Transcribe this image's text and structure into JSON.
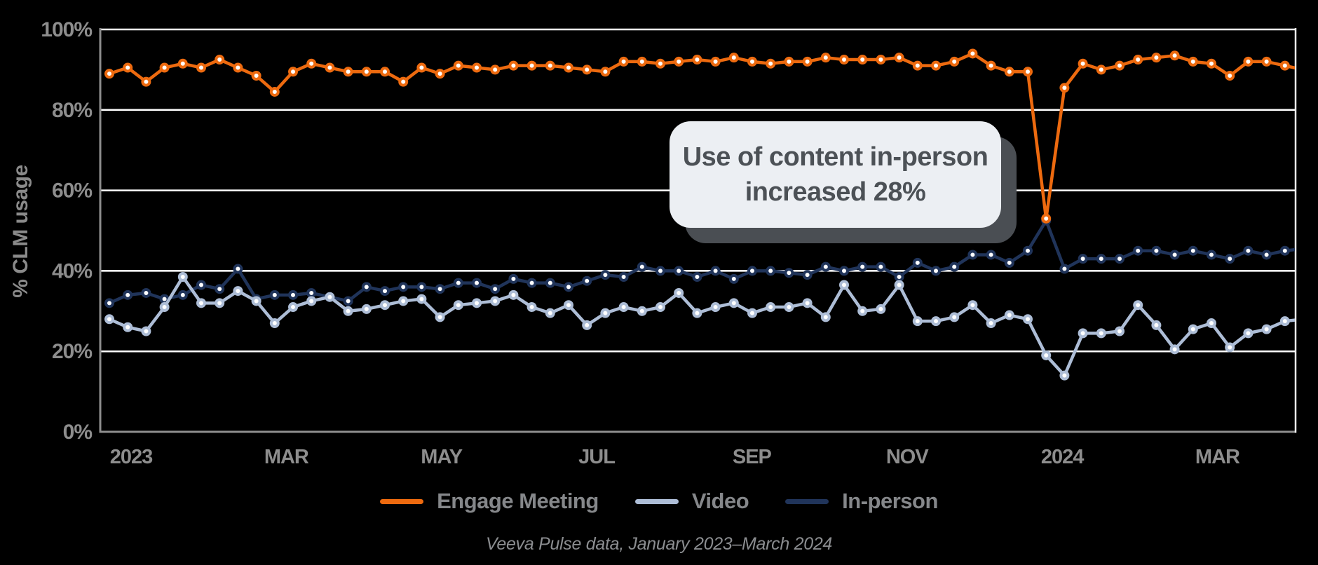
{
  "page": {
    "background": "#000000"
  },
  "chart_data": {
    "type": "line",
    "title": "",
    "xlabel": "",
    "ylabel": "% CLM usage",
    "ylim": [
      0,
      100
    ],
    "grid": "horizontal",
    "legend_position": "bottom",
    "x_tick_labels": [
      "2023",
      "MAR",
      "MAY",
      "JUL",
      "SEP",
      "NOV",
      "2024",
      "MAR"
    ],
    "y_tick_values": [
      0,
      20,
      40,
      60,
      80,
      100
    ],
    "y_tick_labels": [
      "0%",
      "20%",
      "40%",
      "60%",
      "80%",
      "100%"
    ],
    "annotation": {
      "line1": "Use of content in-person",
      "line2": "increased 28%"
    },
    "caption": "Veeva Pulse data, January 2023–March 2024",
    "series": [
      {
        "name": "Engage Meeting",
        "color": "#ED6A0F",
        "values": [
          89,
          90.5,
          87,
          90.5,
          91.5,
          90.5,
          92.5,
          90.5,
          88.5,
          84.5,
          89.5,
          91.5,
          90.5,
          89.5,
          89.5,
          89.5,
          87,
          90.5,
          89,
          91,
          90.5,
          90,
          91,
          91,
          91,
          90.5,
          90,
          89.5,
          92,
          92,
          91.5,
          92,
          92.5,
          92,
          93,
          92,
          91.5,
          92,
          92,
          93,
          92.5,
          92.5,
          92.5,
          93,
          91,
          91,
          92,
          94,
          91,
          89.5,
          89.5,
          53,
          85.5,
          91.5,
          90,
          91,
          92.5,
          93,
          93.5,
          92,
          91.5,
          88.5,
          92,
          92,
          91,
          90
        ]
      },
      {
        "name": "Video",
        "color": "#ADBDD6",
        "values": [
          28,
          26,
          25,
          31,
          38.5,
          32,
          32,
          35,
          32.5,
          27,
          31,
          32.5,
          33.5,
          30,
          30.5,
          31.5,
          32.5,
          33,
          28.5,
          31.5,
          32,
          32.5,
          34,
          31,
          29.5,
          31.5,
          26.5,
          29.5,
          31,
          30,
          31,
          34.5,
          29.5,
          31,
          32,
          29.5,
          31,
          31,
          32,
          28.5,
          36.5,
          30,
          30.5,
          36.5,
          27.5,
          27.5,
          28.5,
          31.5,
          27,
          29,
          28,
          19,
          14,
          24.5,
          24.5,
          25,
          31.5,
          26.5,
          20.5,
          25.5,
          27,
          21,
          24.5,
          25.5,
          27.5,
          28
        ]
      },
      {
        "name": "In-person",
        "color": "#20345A",
        "values": [
          32,
          34,
          34.5,
          33,
          34,
          36.5,
          35.5,
          40.5,
          33,
          34,
          34,
          34.5,
          33.5,
          32.5,
          36,
          35,
          36,
          36,
          35.5,
          37,
          37,
          35.5,
          38,
          37,
          37,
          36,
          37.5,
          39,
          38.5,
          41,
          40,
          40,
          38.5,
          40,
          38,
          40,
          40,
          39.5,
          39,
          41,
          40,
          41,
          41,
          38.5,
          42,
          40,
          41,
          44,
          44,
          42,
          45,
          52.5,
          40.5,
          43,
          43,
          43,
          45,
          45,
          44,
          45,
          44,
          43,
          45,
          44,
          45,
          45.5
        ]
      }
    ],
    "style": {
      "gridline_color": "#FFFFFF",
      "axis_color": "#8E8E8E",
      "right_spine_color": "#EFEFEF",
      "tick_label_color": "#8D8D8D",
      "marker_fill": "#FFFFFF"
    }
  }
}
